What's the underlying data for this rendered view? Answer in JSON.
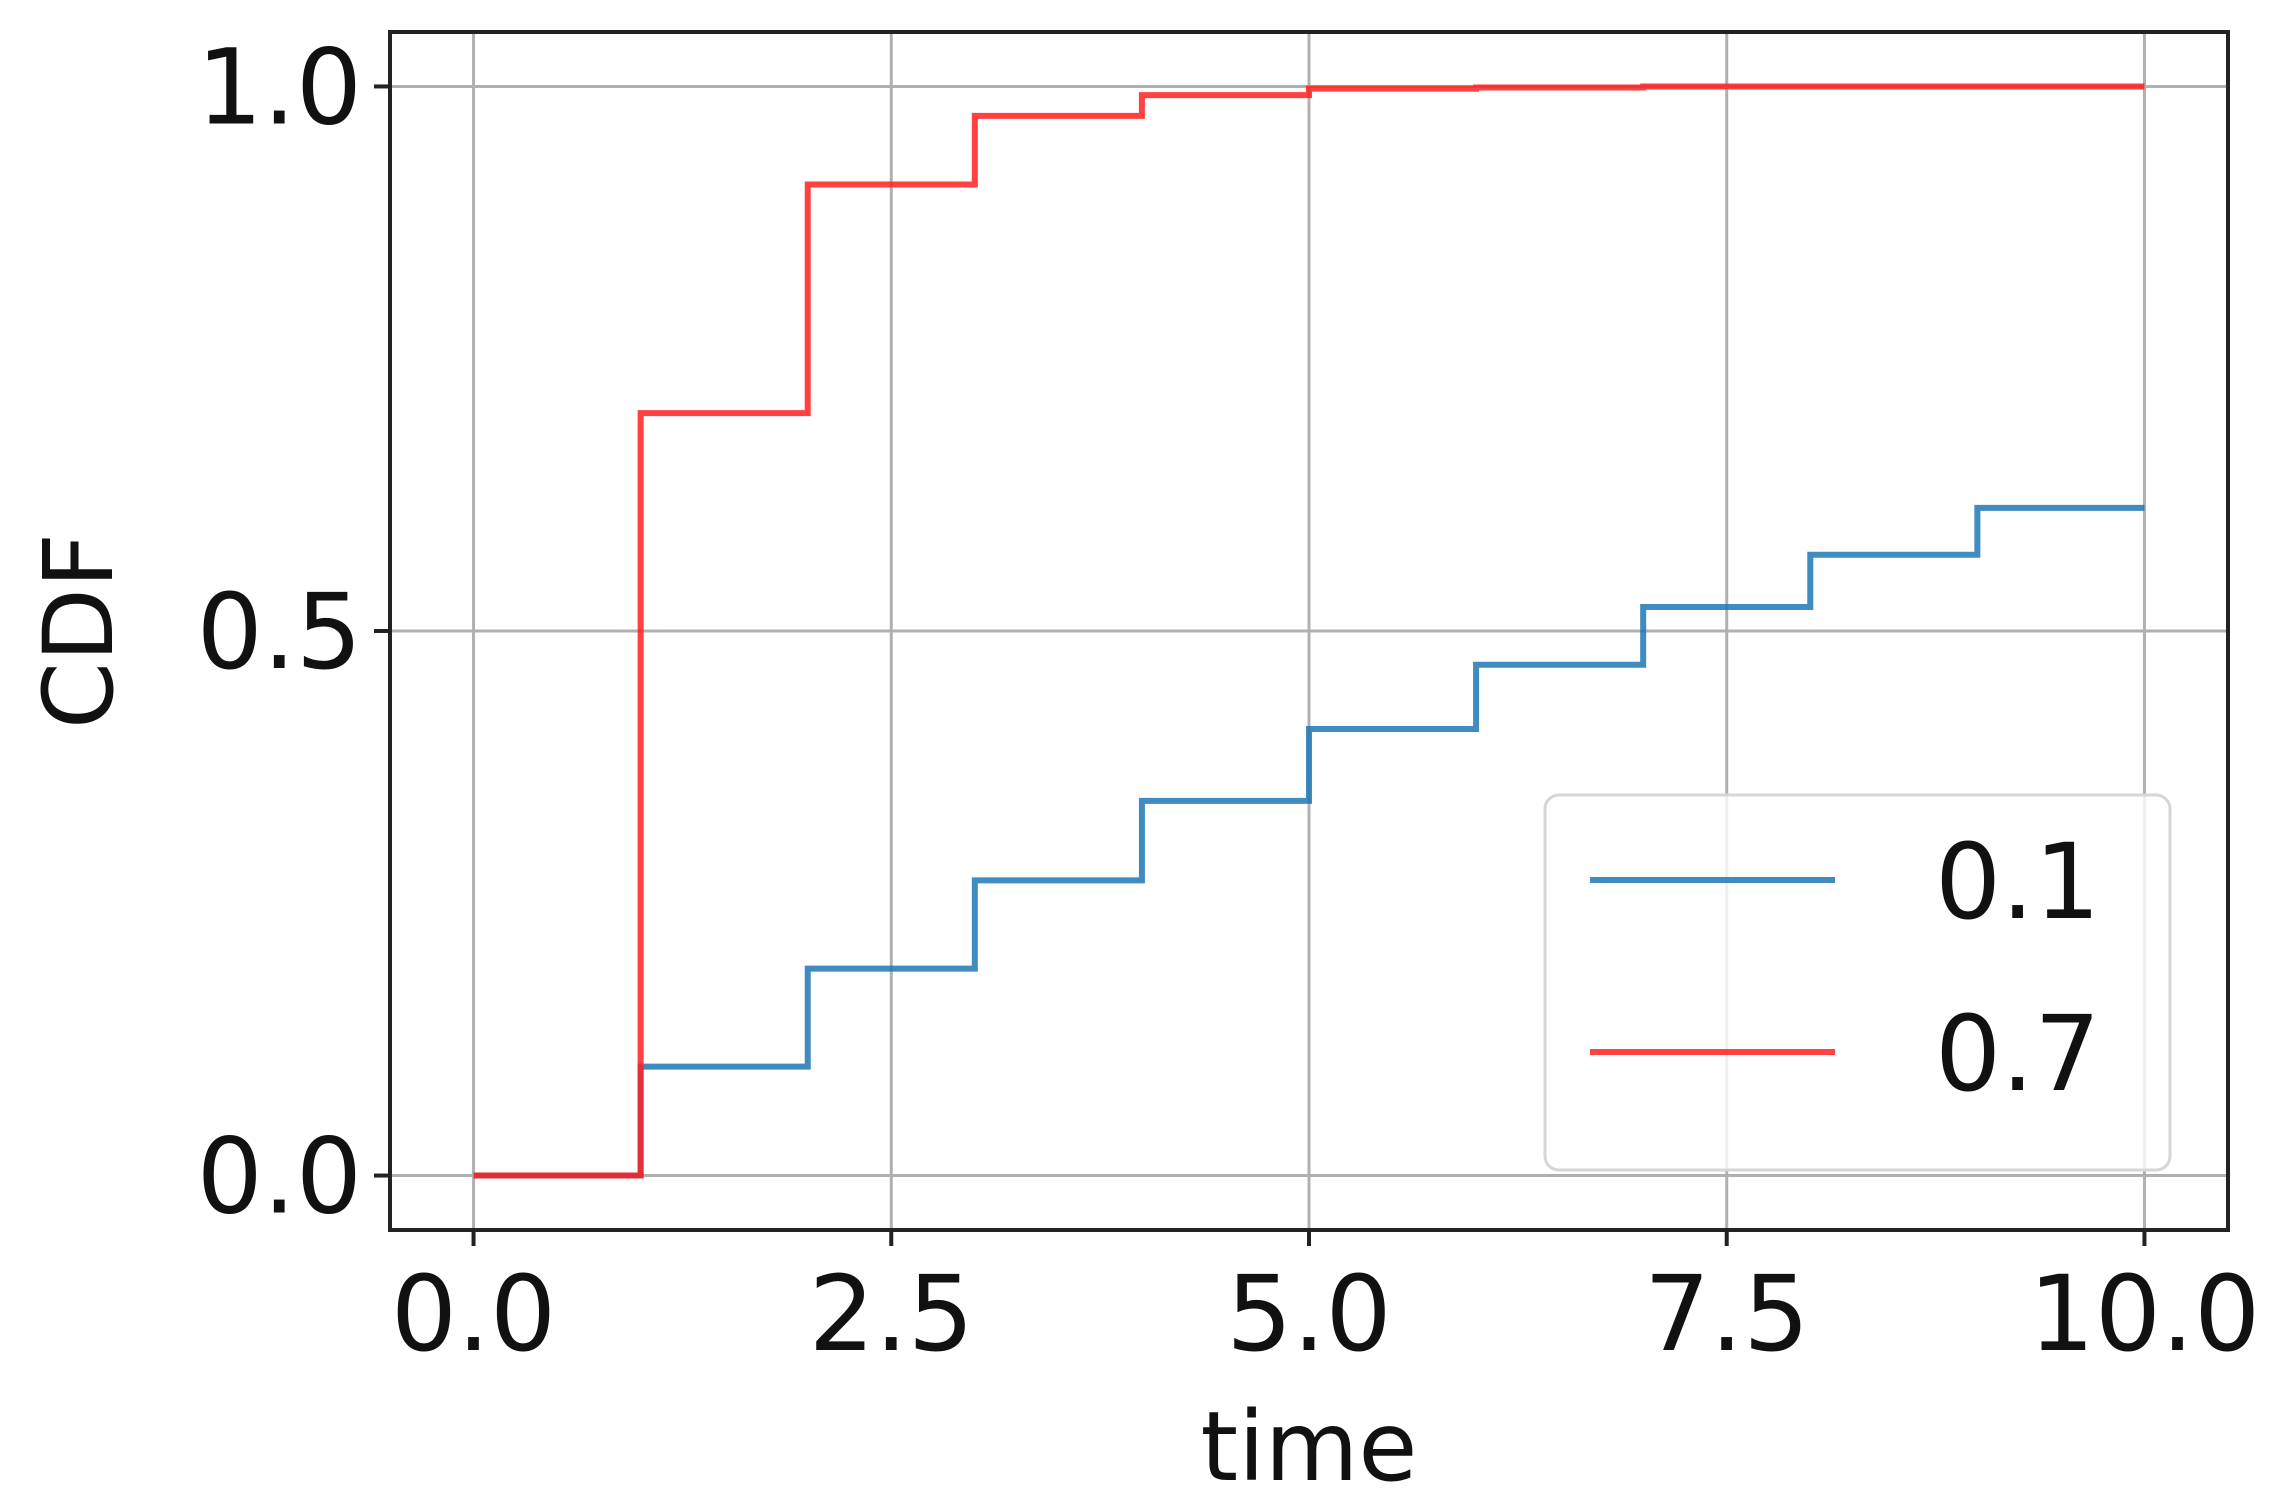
{
  "chart_data": {
    "type": "line",
    "step": "post",
    "title": "",
    "xlabel": "time",
    "ylabel": "CDF",
    "xlim": [
      -0.5,
      10.5
    ],
    "ylim": [
      -0.05,
      1.05
    ],
    "xticks": [
      0.0,
      2.5,
      5.0,
      7.5,
      10.0
    ],
    "xtick_labels": [
      "0.0",
      "2.5",
      "5.0",
      "7.5",
      "10.0"
    ],
    "yticks": [
      0.0,
      0.5,
      1.0
    ],
    "ytick_labels": [
      "0.0",
      "0.5",
      "1.0"
    ],
    "grid": true,
    "legend_position": "lower right",
    "series": [
      {
        "name": "0.1",
        "color": "#1f77b4",
        "x": [
          0,
          1,
          2,
          3,
          4,
          5,
          6,
          7,
          8,
          9,
          10
        ],
        "y": [
          0.0,
          0.1,
          0.19,
          0.271,
          0.344,
          0.41,
          0.469,
          0.522,
          0.57,
          0.613,
          0.613
        ]
      },
      {
        "name": "0.7",
        "color": "#ff2020",
        "x": [
          0,
          1,
          2,
          3,
          4,
          5,
          6,
          7,
          8,
          9,
          10
        ],
        "y": [
          0.0,
          0.7,
          0.91,
          0.973,
          0.992,
          0.998,
          0.999,
          1.0,
          1.0,
          1.0,
          1.0
        ]
      }
    ]
  }
}
